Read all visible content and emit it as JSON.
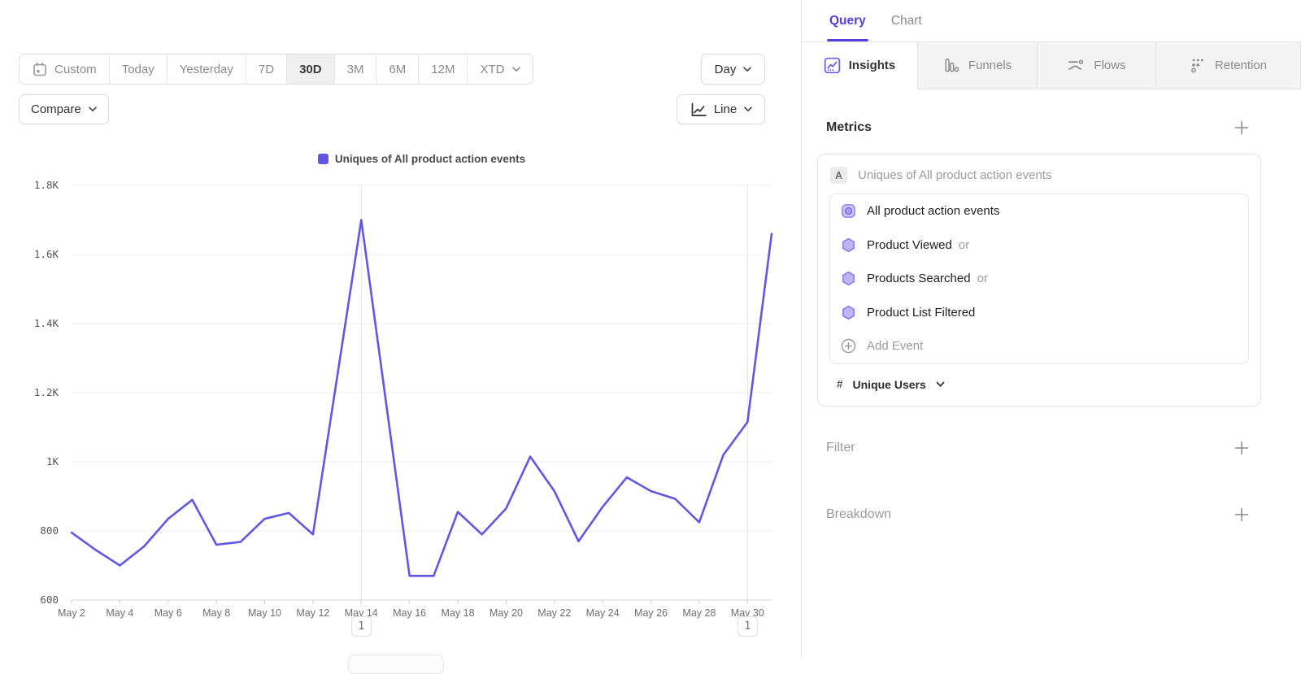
{
  "colors": {
    "accent": "#5240e0",
    "line": "#6157e4",
    "hex_fill": "#beb5f5",
    "hex_stroke": "#8073e8",
    "grid": "#ededed",
    "axis": "#d6d6d6",
    "annotation_line": "#e3e3e3"
  },
  "toolbar": {
    "ranges": [
      "Custom",
      "Today",
      "Yesterday",
      "7D",
      "30D",
      "3M",
      "6M",
      "12M",
      "XTD"
    ],
    "active_range": "30D",
    "granularity_label": "Day",
    "compare_label": "Compare",
    "chart_type_label": "Line"
  },
  "panel": {
    "query_tab": "Query",
    "chart_tab": "Chart",
    "active_tab": "Query",
    "view_tabs": [
      "Insights",
      "Funnels",
      "Flows",
      "Retention"
    ],
    "active_view_tab": "Insights",
    "metrics_title": "Metrics",
    "series_badge": "A",
    "series_title": "Uniques of All product action events",
    "events": [
      {
        "name": "All product action events",
        "suffix": "",
        "icon": "all-events-icon"
      },
      {
        "name": "Product Viewed",
        "suffix": "or",
        "icon": "event-hexagon-icon"
      },
      {
        "name": "Products Searched",
        "suffix": "or",
        "icon": "event-hexagon-icon"
      },
      {
        "name": "Product List Filtered",
        "suffix": "",
        "icon": "event-hexagon-icon"
      }
    ],
    "add_event_label": "Add Event",
    "aggregation_prefix": "#",
    "aggregation_label": "Unique Users",
    "filter_label": "Filter",
    "breakdown_label": "Breakdown"
  },
  "chart_data": {
    "type": "line",
    "legend": "Uniques of All product action events",
    "legend_position": "top-center",
    "grid": true,
    "x": [
      "May 2",
      "May 3",
      "May 4",
      "May 5",
      "May 6",
      "May 7",
      "May 8",
      "May 9",
      "May 10",
      "May 11",
      "May 12",
      "May 13",
      "May 14",
      "May 15",
      "May 16",
      "May 17",
      "May 18",
      "May 19",
      "May 20",
      "May 21",
      "May 22",
      "May 23",
      "May 24",
      "May 25",
      "May 26",
      "May 27",
      "May 28",
      "May 29",
      "May 30",
      "May 31"
    ],
    "values": [
      795,
      745,
      700,
      755,
      835,
      890,
      760,
      768,
      835,
      852,
      790,
      1245,
      1700,
      1185,
      670,
      670,
      855,
      790,
      865,
      1015,
      915,
      770,
      870,
      955,
      915,
      893,
      825,
      1020,
      1115,
      1660
    ],
    "x_tick_every": 2,
    "y_ticks": [
      {
        "label": "1.8K",
        "value": 1800
      },
      {
        "label": "1.6K",
        "value": 1600
      },
      {
        "label": "1.4K",
        "value": 1400
      },
      {
        "label": "1.2K",
        "value": 1200
      },
      {
        "label": "1K",
        "value": 1000
      },
      {
        "label": "800",
        "value": 800
      },
      {
        "label": "600",
        "value": 600
      }
    ],
    "ylim": [
      600,
      1800
    ],
    "annotations": [
      {
        "label": "1",
        "x": "May 14"
      },
      {
        "label": "1",
        "x": "May 30"
      }
    ]
  }
}
